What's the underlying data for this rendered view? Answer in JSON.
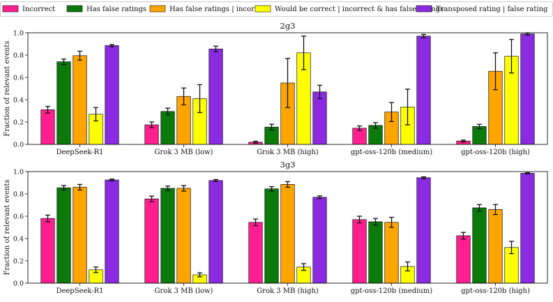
{
  "chart_data": [
    {
      "type": "bar",
      "title": "2g3",
      "ylabel": "Fraction of relevant events",
      "xlabel": "",
      "ylim": [
        0,
        1.0
      ],
      "yticks": [
        "0.0",
        "0.2",
        "0.4",
        "0.6",
        "0.8",
        "1.0"
      ],
      "categories": [
        "DeepSeek-R1",
        "Grok 3 MB (low)",
        "Grok 3 MB (high)",
        "gpt-oss-120b (medium)",
        "gpt-oss-120b (high)"
      ],
      "series": [
        {
          "name": "Incorrect",
          "color": "#ff1f8f",
          "values": [
            0.31,
            0.175,
            0.02,
            0.145,
            0.03
          ],
          "errors": [
            0.03,
            0.025,
            0.008,
            0.02,
            0.008
          ]
        },
        {
          "name": "Has false ratings",
          "color": "#0b7a0b",
          "values": [
            0.74,
            0.295,
            0.155,
            0.17,
            0.16
          ],
          "errors": [
            0.025,
            0.03,
            0.025,
            0.025,
            0.02
          ]
        },
        {
          "name": "Has false ratings | incorrect",
          "color": "#ffa500",
          "values": [
            0.795,
            0.43,
            0.55,
            0.29,
            0.655
          ],
          "errors": [
            0.04,
            0.075,
            0.22,
            0.085,
            0.165
          ]
        },
        {
          "name": "Would be correct | incorrect & has false ratings",
          "color": "#ffff00",
          "values": [
            0.27,
            0.41,
            0.82,
            0.335,
            0.79
          ],
          "errors": [
            0.06,
            0.125,
            0.15,
            0.16,
            0.15
          ]
        },
        {
          "name": "Transposed rating | false rating",
          "color": "#8a2be2",
          "values": [
            0.885,
            0.855,
            0.47,
            0.97,
            0.99
          ],
          "errors": [
            0.01,
            0.025,
            0.06,
            0.015,
            0.01
          ]
        }
      ]
    },
    {
      "type": "bar",
      "title": "3g3",
      "ylabel": "Fraction of relevant events",
      "xlabel": "",
      "ylim": [
        0,
        1.0
      ],
      "yticks": [
        "0.0",
        "0.2",
        "0.4",
        "0.6",
        "0.8",
        "1.0"
      ],
      "categories": [
        "DeepSeek-R1",
        "Grok 3 MB (low)",
        "Grok 3 MB (high)",
        "gpt-oss-120b (medium)",
        "gpt-oss-120b (high)"
      ],
      "series": [
        {
          "name": "Incorrect",
          "color": "#ff1f8f",
          "values": [
            0.58,
            0.755,
            0.545,
            0.57,
            0.425
          ],
          "errors": [
            0.03,
            0.025,
            0.03,
            0.03,
            0.03
          ]
        },
        {
          "name": "Has false ratings",
          "color": "#0b7a0b",
          "values": [
            0.855,
            0.85,
            0.845,
            0.55,
            0.675
          ],
          "errors": [
            0.02,
            0.02,
            0.02,
            0.03,
            0.03
          ]
        },
        {
          "name": "Has false ratings | incorrect",
          "color": "#ffa500",
          "values": [
            0.86,
            0.85,
            0.885,
            0.545,
            0.66
          ],
          "errors": [
            0.025,
            0.025,
            0.025,
            0.045,
            0.045
          ]
        },
        {
          "name": "Would be correct | incorrect & has false ratings",
          "color": "#ffff00",
          "values": [
            0.12,
            0.075,
            0.145,
            0.15,
            0.32
          ],
          "errors": [
            0.025,
            0.018,
            0.03,
            0.04,
            0.055
          ]
        },
        {
          "name": "Transposed rating | false rating",
          "color": "#8a2be2",
          "values": [
            0.925,
            0.92,
            0.77,
            0.945,
            0.985
          ],
          "errors": [
            0.008,
            0.008,
            0.012,
            0.008,
            0.005
          ]
        }
      ]
    }
  ],
  "legend": [
    {
      "label": "Incorrect",
      "color": "#ff1f8f"
    },
    {
      "label": "Has false ratings",
      "color": "#0b7a0b"
    },
    {
      "label": "Has false ratings | incorrect",
      "color": "#ffa500"
    },
    {
      "label": "Would be correct | incorrect & has false ratings",
      "color": "#ffff00"
    },
    {
      "label": "Transposed rating | false rating",
      "color": "#8a2be2"
    }
  ]
}
